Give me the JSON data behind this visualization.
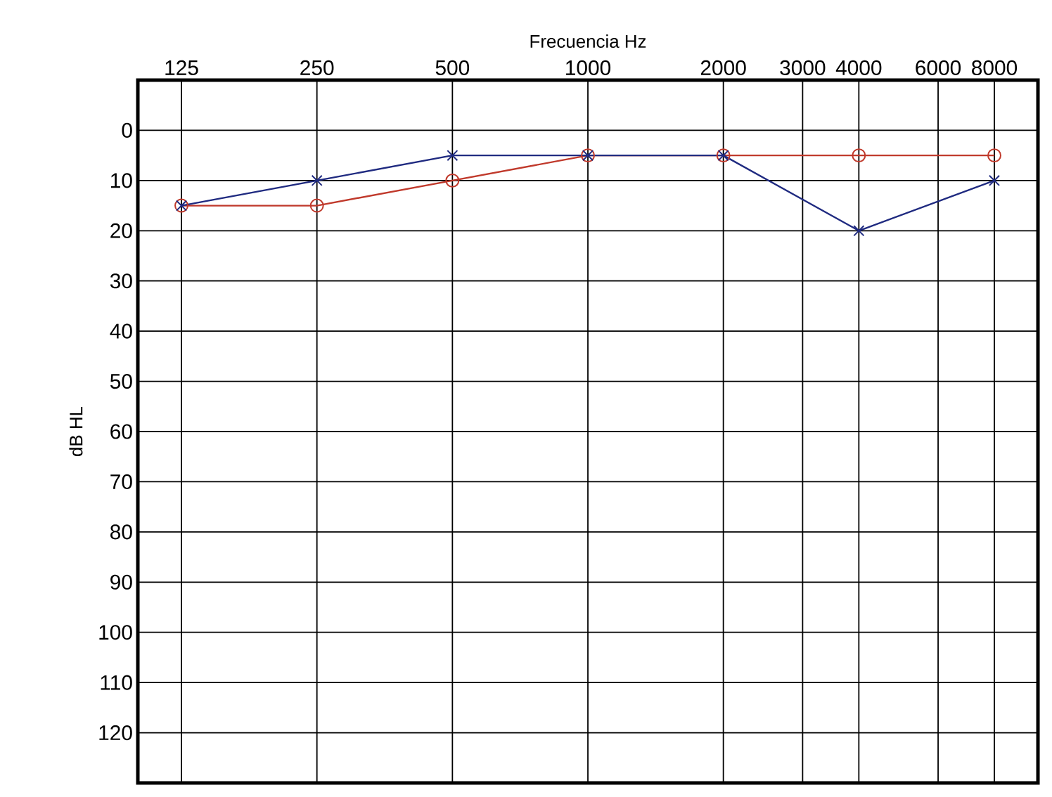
{
  "chart_data": {
    "type": "line",
    "xlabel": "Frecuencia Hz",
    "ylabel": "dB HL",
    "log": "x",
    "grid": true,
    "x": [
      125,
      250,
      500,
      1000,
      2000,
      4000,
      8000
    ],
    "xlim": [
      100,
      10000
    ],
    "xticks": [
      125,
      250,
      500,
      1000,
      2000,
      3000,
      4000,
      6000,
      8000
    ],
    "ylim": [
      130,
      -10
    ],
    "yticks": [
      0,
      10,
      20,
      30,
      40,
      50,
      60,
      70,
      80,
      90,
      100,
      110,
      120
    ],
    "series": [
      {
        "color": "#c0392b",
        "marker": "circle",
        "values": [
          15,
          15,
          10,
          5,
          5,
          5,
          5
        ]
      },
      {
        "color": "#1f2a80",
        "marker": "cross",
        "values": [
          15,
          10,
          5,
          5,
          5,
          20,
          10
        ]
      }
    ]
  }
}
